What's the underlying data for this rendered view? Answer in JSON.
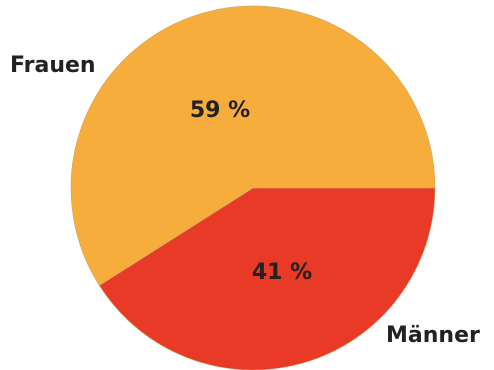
{
  "chart_data": {
    "type": "pie",
    "slices": [
      {
        "label": "Frauen",
        "value": 59,
        "value_label": "59 %",
        "color": "#F6AD3C"
      },
      {
        "label": "Männer",
        "value": 41,
        "value_label": "41 %",
        "color": "#E83A26"
      }
    ],
    "legend": "none",
    "title": ""
  }
}
